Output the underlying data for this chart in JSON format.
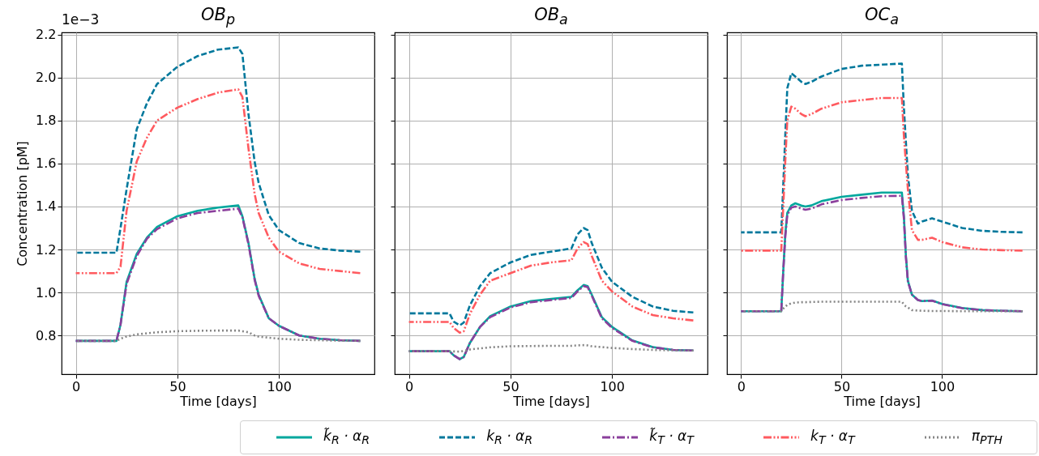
{
  "chart_data": [
    {
      "type": "line",
      "title": "OB$_{p}$",
      "xlabel": "Time [days]",
      "ylabel": "Concentration [pM]",
      "annotations": [
        "1e−3"
      ],
      "legend": "bottom",
      "grid": true,
      "xlim": [
        -7,
        147
      ],
      "ylim": [
        0.62,
        2.21
      ],
      "xticks": [
        0,
        50,
        100
      ],
      "yticks": [
        0.8,
        {
          "value": 1,
          "label": "1.0"
        },
        1.2,
        1.4,
        1.6,
        1.8,
        {
          "value": 2,
          "label": "2.0"
        },
        2.2
      ],
      "x": [
        0,
        10,
        20,
        22,
        25,
        30,
        35,
        40,
        50,
        60,
        70,
        80,
        82,
        85,
        88,
        90,
        95,
        100,
        110,
        120,
        130,
        140
      ],
      "series": [
        {
          "name": "k̃$_{R}$ · α$_{R}$",
          "color": "#00a79d",
          "line_style": "solid",
          "values": [
            0.775,
            0.775,
            0.775,
            0.85,
            1.05,
            1.18,
            1.255,
            1.305,
            1.355,
            1.38,
            1.395,
            1.405,
            1.355,
            1.23,
            1.065,
            0.99,
            0.88,
            0.845,
            0.8,
            0.785,
            0.778,
            0.775
          ]
        },
        {
          "name": "k$_{R}$ · α$_{R}$",
          "color": "#00789c",
          "line_style": "dashed",
          "values": [
            1.185,
            1.185,
            1.185,
            1.3,
            1.48,
            1.76,
            1.88,
            1.97,
            2.05,
            2.1,
            2.13,
            2.14,
            2.11,
            1.83,
            1.61,
            1.51,
            1.36,
            1.29,
            1.23,
            1.205,
            1.195,
            1.19
          ]
        },
        {
          "name": "k̃$_{T}$ · α$_{T}$",
          "color": "#8b3f9c",
          "line_style": "dashdot",
          "values": [
            0.775,
            0.775,
            0.775,
            0.85,
            1.04,
            1.17,
            1.25,
            1.295,
            1.345,
            1.37,
            1.38,
            1.39,
            1.35,
            1.225,
            1.06,
            0.985,
            0.88,
            0.845,
            0.8,
            0.785,
            0.778,
            0.775
          ]
        },
        {
          "name": "k$_{T}$ · α$_{T}$",
          "color": "#ff5a5f",
          "line_style": "dashdotdot",
          "values": [
            1.09,
            1.09,
            1.09,
            1.12,
            1.38,
            1.61,
            1.72,
            1.8,
            1.86,
            1.9,
            1.93,
            1.945,
            1.91,
            1.67,
            1.46,
            1.37,
            1.255,
            1.19,
            1.135,
            1.11,
            1.1,
            1.09
          ]
        },
        {
          "name": "π$_{PTH}$",
          "color": "#868686",
          "line_style": "dotted",
          "values": [
            0.775,
            0.775,
            0.775,
            0.785,
            0.795,
            0.805,
            0.81,
            0.815,
            0.82,
            0.822,
            0.823,
            0.823,
            0.82,
            0.815,
            0.8,
            0.795,
            0.79,
            0.785,
            0.78,
            0.778,
            0.776,
            0.775
          ]
        }
      ]
    },
    {
      "type": "line",
      "title": "OB$_{a}$",
      "xlabel": "Time [days]",
      "tick_labels": "x",
      "grid": true,
      "xlim": [
        -7,
        147
      ],
      "ylim": [
        0.62,
        2.21
      ],
      "xticks": [
        0,
        50,
        100
      ],
      "yticks": [
        0.8,
        1,
        1.2,
        1.4,
        1.6,
        1.8,
        2,
        2.2
      ],
      "x": [
        0,
        10,
        20,
        22,
        25,
        27,
        30,
        35,
        40,
        50,
        60,
        70,
        80,
        83,
        86,
        88,
        90,
        95,
        100,
        110,
        120,
        130,
        140
      ],
      "series": [
        {
          "color": "#00a79d",
          "line_style": "solid",
          "values": [
            0.727,
            0.727,
            0.727,
            0.708,
            0.69,
            0.7,
            0.765,
            0.84,
            0.89,
            0.935,
            0.96,
            0.97,
            0.98,
            1.01,
            1.035,
            1.03,
            0.99,
            0.885,
            0.84,
            0.777,
            0.746,
            0.733,
            0.73
          ]
        },
        {
          "color": "#00789c",
          "line_style": "dashed",
          "values": [
            0.903,
            0.903,
            0.903,
            0.865,
            0.847,
            0.86,
            0.94,
            1.03,
            1.09,
            1.14,
            1.175,
            1.19,
            1.205,
            1.27,
            1.3,
            1.29,
            1.23,
            1.115,
            1.05,
            0.98,
            0.935,
            0.915,
            0.907
          ]
        },
        {
          "color": "#8b3f9c",
          "line_style": "dashdot",
          "values": [
            0.727,
            0.727,
            0.727,
            0.708,
            0.69,
            0.7,
            0.765,
            0.84,
            0.885,
            0.93,
            0.955,
            0.965,
            0.975,
            1.005,
            1.03,
            1.025,
            0.985,
            0.88,
            0.835,
            0.775,
            0.745,
            0.733,
            0.73
          ]
        },
        {
          "color": "#ff5a5f",
          "line_style": "dashdotdot",
          "values": [
            0.863,
            0.863,
            0.863,
            0.835,
            0.813,
            0.82,
            0.9,
            0.99,
            1.055,
            1.09,
            1.125,
            1.14,
            1.15,
            1.205,
            1.235,
            1.225,
            1.17,
            1.055,
            1.005,
            0.935,
            0.895,
            0.88,
            0.87
          ]
        },
        {
          "color": "#868686",
          "line_style": "dotted",
          "values": [
            0.727,
            0.727,
            0.727,
            0.726,
            0.725,
            0.728,
            0.735,
            0.74,
            0.745,
            0.75,
            0.751,
            0.752,
            0.752,
            0.754,
            0.755,
            0.754,
            0.75,
            0.746,
            0.742,
            0.737,
            0.733,
            0.731,
            0.73
          ]
        }
      ]
    },
    {
      "type": "line",
      "title": "OC$_{a}$",
      "xlabel": "Time [days]",
      "tick_labels": "x",
      "grid": true,
      "xlim": [
        -7,
        147
      ],
      "ylim": [
        0.62,
        2.21
      ],
      "xticks": [
        0,
        50,
        100
      ],
      "yticks": [
        0.8,
        1,
        1.2,
        1.4,
        1.6,
        1.8,
        2,
        2.2
      ],
      "x": [
        0,
        10,
        20,
        21,
        22,
        23,
        25,
        27,
        30,
        32,
        35,
        40,
        50,
        60,
        70,
        80,
        81,
        82,
        83,
        85,
        88,
        90,
        95,
        100,
        110,
        120,
        130,
        140
      ],
      "series": [
        {
          "color": "#00a79d",
          "line_style": "solid",
          "values": [
            0.913,
            0.913,
            0.913,
            1.1,
            1.27,
            1.37,
            1.405,
            1.415,
            1.405,
            1.4,
            1.405,
            1.425,
            1.445,
            1.455,
            1.465,
            1.465,
            1.355,
            1.17,
            1.055,
            0.99,
            0.965,
            0.96,
            0.963,
            0.947,
            0.928,
            0.918,
            0.915,
            0.913
          ]
        },
        {
          "color": "#00789c",
          "line_style": "dashed",
          "values": [
            1.28,
            1.28,
            1.28,
            1.5,
            1.73,
            1.95,
            2.02,
            2.005,
            1.98,
            1.97,
            1.98,
            2.005,
            2.04,
            2.055,
            2.06,
            2.065,
            1.86,
            1.7,
            1.545,
            1.38,
            1.32,
            1.33,
            1.345,
            1.33,
            1.3,
            1.287,
            1.282,
            1.28
          ]
        },
        {
          "color": "#8b3f9c",
          "line_style": "dashdot",
          "values": [
            0.913,
            0.913,
            0.913,
            1.1,
            1.26,
            1.36,
            1.395,
            1.4,
            1.39,
            1.385,
            1.39,
            1.41,
            1.43,
            1.44,
            1.448,
            1.45,
            1.345,
            1.165,
            1.05,
            0.99,
            0.965,
            0.96,
            0.962,
            0.946,
            0.927,
            0.918,
            0.915,
            0.913
          ]
        },
        {
          "color": "#ff5a5f",
          "line_style": "dashdotdot",
          "values": [
            1.195,
            1.195,
            1.195,
            1.4,
            1.61,
            1.8,
            1.865,
            1.855,
            1.83,
            1.82,
            1.83,
            1.855,
            1.885,
            1.895,
            1.905,
            1.905,
            1.73,
            1.6,
            1.48,
            1.29,
            1.245,
            1.245,
            1.255,
            1.235,
            1.21,
            1.2,
            1.197,
            1.195
          ]
        },
        {
          "color": "#868686",
          "line_style": "dotted",
          "values": [
            0.913,
            0.913,
            0.913,
            0.925,
            0.935,
            0.942,
            0.95,
            0.953,
            0.955,
            0.955,
            0.956,
            0.957,
            0.957,
            0.957,
            0.957,
            0.957,
            0.945,
            0.935,
            0.93,
            0.918,
            0.916,
            0.915,
            0.914,
            0.914,
            0.913,
            0.913,
            0.913,
            0.913
          ]
        }
      ]
    }
  ]
}
